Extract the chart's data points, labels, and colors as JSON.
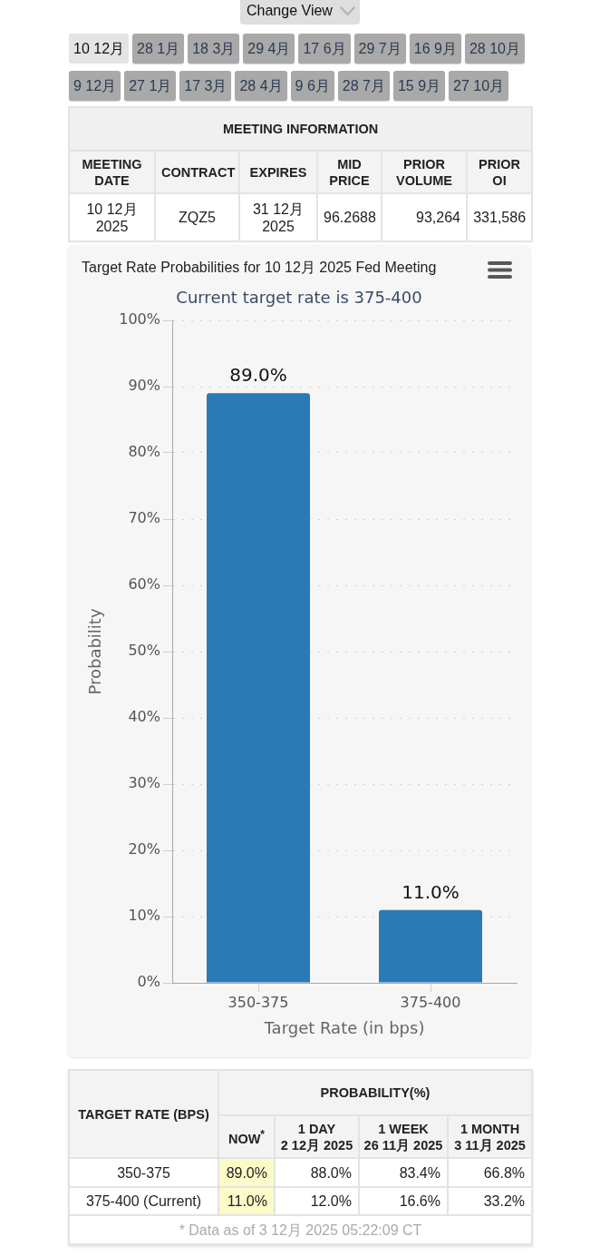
{
  "chart_data": [
    {
      "type": "other",
      "annotations": [
        "Change View",
        "10 12月",
        "28 1月",
        "18 3月",
        "29 4月",
        "17 6月",
        "29 7月",
        "16 9月",
        "28 10月",
        "9 12月",
        "27 1月",
        "17 3月",
        "28 4月",
        "9 6月",
        "28 7月",
        "15 9月",
        "27 10月"
      ]
    },
    {
      "type": "other",
      "title": "MEETING INFORMATION",
      "annotations": [
        "MEETING DATE",
        "CONTRACT",
        "EXPIRES",
        "MID PRICE",
        "PRIOR VOLUME",
        "PRIOR OI",
        "10 12月 2025",
        "ZQZ5",
        "31 12月 2025",
        "96.2688",
        "93,264",
        "331,586"
      ]
    },
    {
      "type": "bar",
      "title": "Target Rate Probabilities for 10 12月 2025 Fed Meeting",
      "subtitle": "Current target rate is 375-400",
      "xlabel": "Target Rate (in bps)",
      "ylabel": "Probability",
      "categories": [
        "350-375",
        "375-400"
      ],
      "values": [
        89.0,
        11.0
      ],
      "color": "#2a7ab8",
      "value_labels": [
        "89.0%",
        "11.0%"
      ],
      "ylim": [
        0,
        100
      ],
      "yticks": [
        {
          "value": 0,
          "label": "0%"
        },
        {
          "value": 10,
          "label": "10%"
        },
        {
          "value": 20,
          "label": "20%"
        },
        {
          "value": 30,
          "label": "30%"
        },
        {
          "value": 40,
          "label": "40%"
        },
        {
          "value": 50,
          "label": "50%"
        },
        {
          "value": 60,
          "label": "60%"
        },
        {
          "value": 70,
          "label": "70%"
        },
        {
          "value": 80,
          "label": "80%"
        },
        {
          "value": 90,
          "label": "90%"
        },
        {
          "value": 100,
          "label": "100%"
        }
      ],
      "grid": "y"
    },
    {
      "type": "other",
      "annotations": [
        "TARGET RATE (BPS)",
        "PROBABILITY(%)",
        "NOW$^{*}$",
        "1 DAY",
        "2 12月 2025",
        "1 WEEK",
        "26 11月 2025",
        "1 MONTH",
        "3 11月 2025",
        "350-375",
        "89.0%",
        "88.0%",
        "83.4%",
        "66.8%",
        "375-400 (Current)",
        "11.0%",
        "12.0%",
        "16.6%",
        "33.2%",
        "* Data as of 3 12月 2025 05:22:09 CT"
      ]
    }
  ]
}
